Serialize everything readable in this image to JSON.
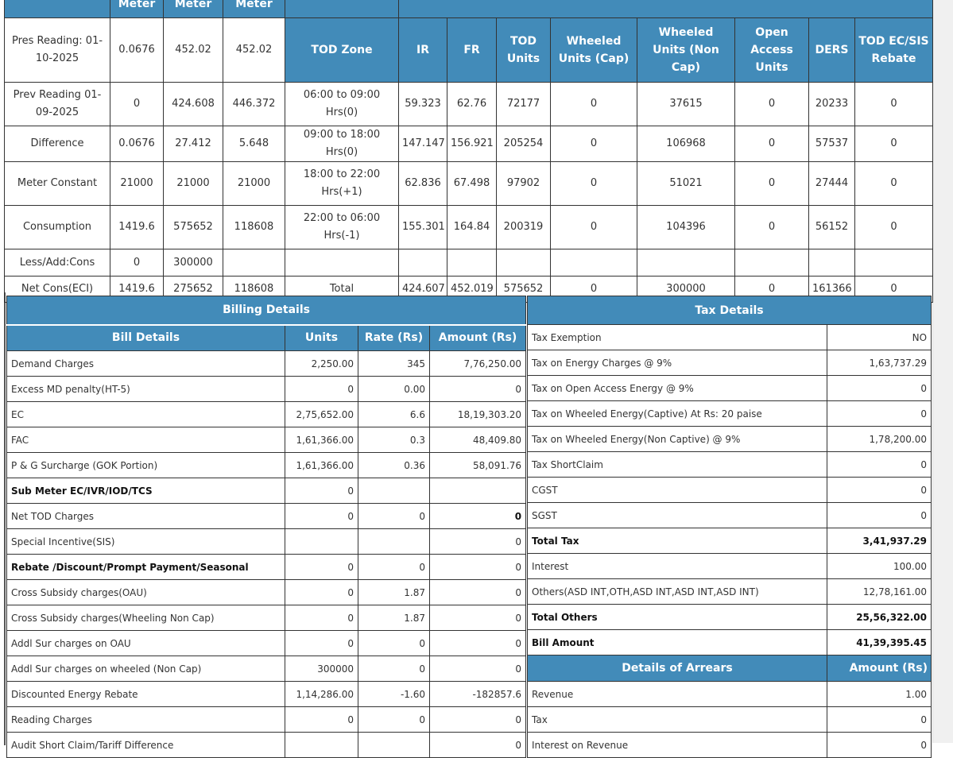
{
  "meter_headers": [
    "Meter",
    "Meter",
    "Meter"
  ],
  "tod_headers": [
    "TOD Zone",
    "IR",
    "FR",
    "TOD Units",
    "Wheeled Units (Cap)",
    "Wheeled Units (Non Cap)",
    "Open Access Units",
    "DERS",
    "TOD EC/SIS Rebate"
  ],
  "readings": [
    {
      "label": "Pres Reading: 01-10-2025",
      "m": [
        "0.0676",
        "452.02",
        "452.02"
      ]
    },
    {
      "label": "Prev Reading 01-09-2025",
      "m": [
        "0",
        "424.608",
        "446.372"
      ],
      "tod": [
        "06:00  to 09:00 Hrs(0)",
        "59.323",
        "62.76",
        "72177",
        "0",
        "37615",
        "0",
        "20233",
        "0"
      ]
    },
    {
      "label": "Difference",
      "m": [
        "0.0676",
        "27.412",
        "5.648"
      ],
      "tod": [
        "09:00 to 18:00 Hrs(0)",
        "147.147",
        "156.921",
        "205254",
        "0",
        "106968",
        "0",
        "57537",
        "0"
      ]
    },
    {
      "label": "Meter Constant",
      "m": [
        "21000",
        "21000",
        "21000"
      ],
      "tod": [
        "18:00  to 22:00 Hrs(+1)",
        "62.836",
        "67.498",
        "97902",
        "0",
        "51021",
        "0",
        "27444",
        "0"
      ]
    },
    {
      "label": "Consumption",
      "m": [
        "1419.6",
        "575652",
        "118608"
      ],
      "tod": [
        "22:00  to 06:00 Hrs(-1)",
        "155.301",
        "164.84",
        "200319",
        "0",
        "104396",
        "0",
        "56152",
        "0"
      ]
    },
    {
      "label": "Less/Add:Cons",
      "m": [
        "0",
        "300000",
        ""
      ],
      "tod": [
        "",
        "",
        "",
        "",
        "",
        "",
        "",
        "",
        ""
      ]
    },
    {
      "label": "Net Cons(ECI)",
      "m": [
        "1419.6",
        "275652",
        "118608"
      ],
      "tod": [
        "Total",
        "424.607",
        "452.019",
        "575652",
        "0",
        "300000",
        "0",
        "161366",
        "0"
      ]
    }
  ],
  "billing": {
    "title": "Billing Details",
    "headers": [
      "Bill Details",
      "Units",
      "Rate (Rs)",
      "Amount (Rs)"
    ],
    "rows": [
      [
        "Demand Charges",
        "2,250.00",
        "345",
        "7,76,250.00"
      ],
      [
        "Excess MD penalty(HT-5)",
        "0",
        "0.00",
        "0"
      ],
      [
        "EC",
        "2,75,652.00",
        "6.6",
        "18,19,303.20"
      ],
      [
        "FAC",
        "1,61,366.00",
        "0.3",
        "48,409.80"
      ],
      [
        "P & G Surcharge (GOK Portion)",
        "1,61,366.00",
        "0.36",
        "58,091.76"
      ],
      [
        "Sub Meter EC/IVR/IOD/TCS",
        "0",
        "",
        ""
      ],
      [
        "Net TOD Charges",
        "0",
        "0",
        "0"
      ],
      [
        "Special Incentive(SIS)",
        "",
        "",
        "0"
      ],
      [
        "Rebate /Discount/Prompt Payment/Seasonal",
        "0",
        "0",
        "0"
      ],
      [
        "Cross Subsidy charges(OAU)",
        "0",
        "1.87",
        "0"
      ],
      [
        "Cross Subsidy charges(Wheeling Non Cap)",
        "0",
        "1.87",
        "0"
      ],
      [
        "Addl Sur charges on OAU",
        "0",
        "0",
        "0"
      ],
      [
        "Addl Sur charges on wheeled (Non Cap)",
        "300000",
        "0",
        "0"
      ],
      [
        "Discounted Energy Rebate",
        "1,14,286.00",
        "-1.60",
        "-182857.6"
      ],
      [
        "Reading Charges",
        "0",
        "0",
        "0"
      ],
      [
        "Audit Short Claim/Tariff Difference",
        "",
        "",
        "0"
      ]
    ]
  },
  "tax": {
    "title": "Tax Details",
    "rows": [
      [
        "Tax Exemption",
        "NO"
      ],
      [
        "Tax on Energy Charges @ 9%",
        "1,63,737.29"
      ],
      [
        "Tax on Open Access Energy @ 9%",
        "0"
      ],
      [
        "Tax on Wheeled Energy(Captive) At Rs: 20 paise",
        "0"
      ],
      [
        "Tax on Wheeled Energy(Non Captive) @ 9%",
        "1,78,200.00"
      ],
      [
        "Tax ShortClaim",
        "0"
      ],
      [
        "CGST",
        "0"
      ],
      [
        "SGST",
        "0"
      ],
      [
        "Total Tax",
        "3,41,937.29"
      ],
      [
        "Interest",
        "100.00"
      ],
      [
        "Others(ASD INT,OTH,ASD INT,ASD INT,ASD INT)",
        "12,78,161.00"
      ],
      [
        "Total Others",
        "25,56,322.00"
      ],
      [
        "Bill Amount",
        "41,39,395.45"
      ]
    ],
    "arrears_headers": [
      "Details of Arrears",
      "Amount (Rs)"
    ],
    "arrears": [
      [
        "Revenue",
        "1.00"
      ],
      [
        "Tax",
        "0"
      ],
      [
        "Interest on Revenue",
        "0"
      ]
    ]
  }
}
